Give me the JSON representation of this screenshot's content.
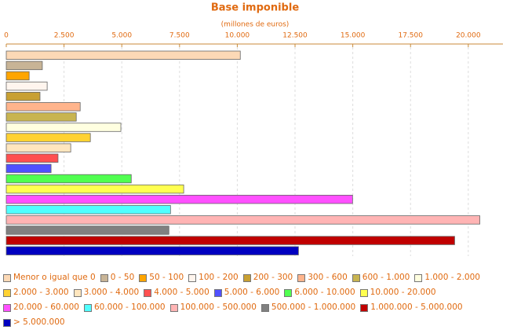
{
  "chart_data": {
    "type": "hbar",
    "title": "Base imponible",
    "subtitle": "(millones de euros)",
    "xlim": [
      0,
      21500
    ],
    "xticks": [
      0,
      {
        "value": 2500,
        "label": "2.500"
      },
      {
        "value": 5000,
        "label": "5.000"
      },
      {
        "value": 7500,
        "label": "7.500"
      },
      {
        "value": 10000,
        "label": "10.000"
      },
      {
        "value": 12500,
        "label": "12.500"
      },
      {
        "value": 15000,
        "label": "15.000"
      },
      {
        "value": 17500,
        "label": "17.500"
      },
      {
        "value": 20000,
        "label": "20.000"
      }
    ],
    "grid": true,
    "legend": "bottom",
    "series": [
      {
        "name": "Menor o igual que 0",
        "color": "#fcd9b6",
        "values": [
          10130
        ]
      },
      {
        "name": "0 - 50",
        "color": "#c8b496",
        "values": [
          1560
        ]
      },
      {
        "name": "50 - 100",
        "color": "#ffa500",
        "values": [
          990
        ]
      },
      {
        "name": "100 - 200",
        "color": "#fff5ee",
        "values": [
          1770
        ]
      },
      {
        "name": "200 - 300",
        "color": "#c8a032",
        "values": [
          1460
        ]
      },
      {
        "name": "300 - 600",
        "color": "#ffb48c",
        "values": [
          3200
        ]
      },
      {
        "name": "600 - 1.000",
        "color": "#c8b450",
        "values": [
          3030
        ]
      },
      {
        "name": "1.000 - 2.000",
        "color": "#ffffe0",
        "values": [
          4960
        ]
      },
      {
        "name": "2.000 - 3.000",
        "color": "#ffd232",
        "values": [
          3640
        ]
      },
      {
        "name": "3.000 - 4.000",
        "color": "#ffe6be",
        "values": [
          2790
        ]
      },
      {
        "name": "4.000 - 5.000",
        "color": "#ff5050",
        "values": [
          2240
        ]
      },
      {
        "name": "5.000 - 6.000",
        "color": "#5050ff",
        "values": [
          1940
        ]
      },
      {
        "name": "6.000 - 10.000",
        "color": "#50ff50",
        "values": [
          5410
        ]
      },
      {
        "name": "10.000 - 20.000",
        "color": "#ffff50",
        "values": [
          7680
        ]
      },
      {
        "name": "20.000 - 60.000",
        "color": "#ff50ff",
        "values": [
          14990
        ]
      },
      {
        "name": "60.000 - 100.000",
        "color": "#50ffff",
        "values": [
          7110
        ]
      },
      {
        "name": "100.000 - 500.000",
        "color": "#ffb4b4",
        "values": [
          20500
        ]
      },
      {
        "name": "500.000 - 1.000.000",
        "color": "#808080",
        "values": [
          7040
        ]
      },
      {
        "name": "1.000.000 - 5.000.000",
        "color": "#c00000",
        "values": [
          19410
        ]
      },
      {
        "name": "> 5.000.000",
        "color": "#0000c0",
        "values": [
          12650
        ]
      }
    ]
  }
}
